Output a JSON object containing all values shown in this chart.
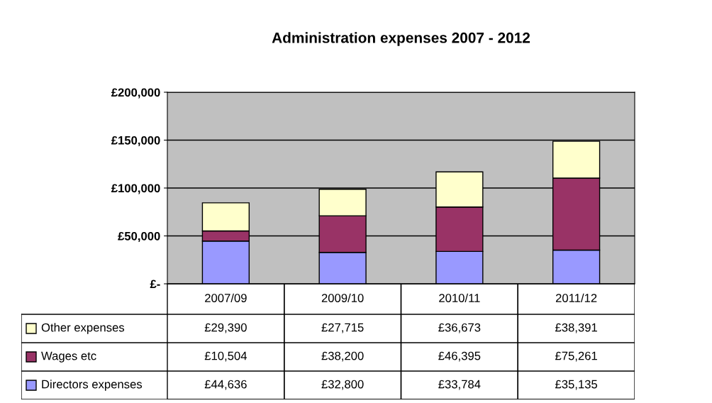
{
  "chart_data": {
    "type": "bar",
    "title": "Administration expenses 2007 - 2012",
    "stacked": true,
    "legend": "bottom",
    "grid": "y",
    "data_labels": true,
    "categories": [
      "2007/09",
      "2009/10",
      "2010/11",
      "2011/12"
    ],
    "series": [
      {
        "name": "Directors expenses",
        "color": "#9999ff",
        "values": [
          44636,
          32800,
          33784,
          35135
        ],
        "value_labels": [
          "£44,636",
          "£32,800",
          "£33,784",
          "£35,135"
        ]
      },
      {
        "name": "Wages etc",
        "color": "#993366",
        "values": [
          10504,
          38200,
          46395,
          75261
        ],
        "value_labels": [
          "£10,504",
          "£38,200",
          "£46,395",
          "£75,261"
        ]
      },
      {
        "name": "Other expenses",
        "color": "#ffffcc",
        "values": [
          29390,
          27715,
          36673,
          38391
        ],
        "value_labels": [
          "£29,390",
          "£27,715",
          "£36,673",
          "£38,391"
        ]
      }
    ],
    "ylim": [
      0,
      200000
    ],
    "yticks": [
      {
        "value": 0,
        "label": "£-"
      },
      {
        "value": 50000,
        "label": "£50,000"
      },
      {
        "value": 100000,
        "label": "£100,000"
      },
      {
        "value": 150000,
        "label": "£150,000"
      },
      {
        "value": 200000,
        "label": "£200,000"
      }
    ]
  }
}
